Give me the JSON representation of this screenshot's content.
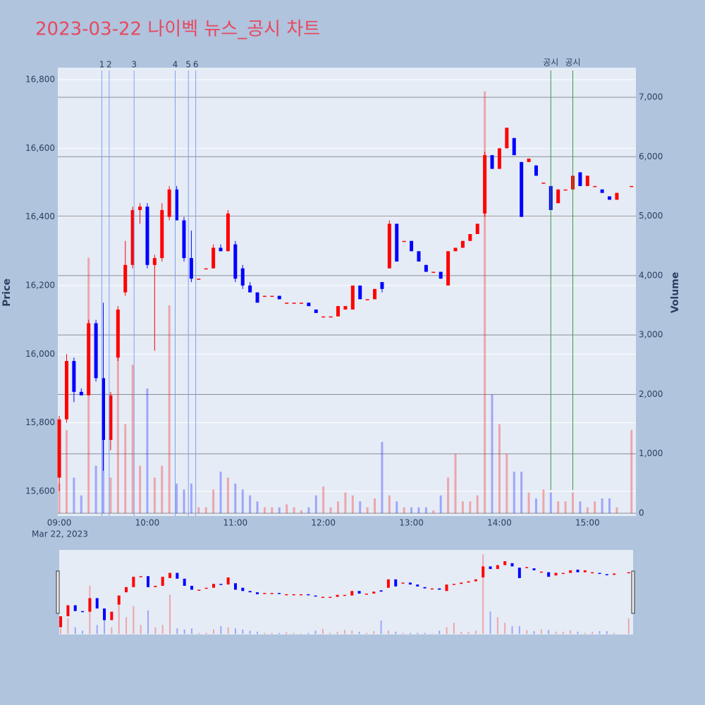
{
  "chart_data": {
    "type": "candlestick",
    "title": "2023-03-22 나이벡 뉴스_공시 차트",
    "x_date_label": "Mar 22, 2023",
    "ylabel": "Price",
    "y2label": "Volume",
    "x": [
      "09:00",
      "09:05",
      "09:10",
      "09:15",
      "09:20",
      "09:25",
      "09:30",
      "09:35",
      "09:40",
      "09:45",
      "09:50",
      "09:55",
      "10:00",
      "10:05",
      "10:10",
      "10:15",
      "10:20",
      "10:25",
      "10:30",
      "10:35",
      "10:40",
      "10:45",
      "10:50",
      "10:55",
      "11:00",
      "11:05",
      "11:10",
      "11:15",
      "11:20",
      "11:25",
      "11:30",
      "11:35",
      "11:40",
      "11:45",
      "11:50",
      "11:55",
      "12:00",
      "12:05",
      "12:10",
      "12:15",
      "12:20",
      "12:25",
      "12:30",
      "12:35",
      "12:40",
      "12:45",
      "12:50",
      "12:55",
      "13:00",
      "13:05",
      "13:10",
      "13:15",
      "13:20",
      "13:25",
      "13:30",
      "13:35",
      "13:40",
      "13:45",
      "13:50",
      "13:55",
      "14:00",
      "14:05",
      "14:10",
      "14:15",
      "14:20",
      "14:25",
      "14:30",
      "14:35",
      "14:40",
      "14:45",
      "14:50",
      "14:55",
      "15:00",
      "15:05",
      "15:10",
      "15:15",
      "15:20",
      "15:30"
    ],
    "open": [
      15640,
      15810,
      15980,
      15890,
      15880,
      16090,
      15930,
      15750,
      15990,
      16180,
      16260,
      16420,
      16430,
      16260,
      16280,
      16400,
      16480,
      16390,
      16280,
      16220,
      16250,
      16250,
      16310,
      16300,
      16320,
      16250,
      16200,
      16180,
      16170,
      16170,
      16170,
      16150,
      16150,
      16150,
      16150,
      16130,
      16110,
      16110,
      16110,
      16130,
      16130,
      16200,
      16160,
      16160,
      16210,
      16250,
      16380,
      16330,
      16330,
      16300,
      16260,
      16240,
      16240,
      16200,
      16300,
      16310,
      16330,
      16350,
      16410,
      16580,
      16540,
      16600,
      16630,
      16560,
      16560,
      16550,
      16500,
      16490,
      16440,
      16480,
      16480,
      16530,
      16490,
      16490,
      16480,
      16460,
      16450,
      16490
    ],
    "high": [
      15820,
      16000,
      15990,
      15900,
      16100,
      16100,
      16150,
      15890,
      16140,
      16330,
      16430,
      16440,
      16440,
      16290,
      16440,
      16490,
      16490,
      16400,
      16360,
      16220,
      16250,
      16320,
      16320,
      16420,
      16330,
      16260,
      16210,
      16180,
      16170,
      16170,
      16170,
      16150,
      16150,
      16150,
      16150,
      16130,
      16110,
      16110,
      16140,
      16140,
      16200,
      16200,
      16160,
      16190,
      16210,
      16390,
      16380,
      16330,
      16330,
      16300,
      16260,
      16240,
      16240,
      16300,
      16310,
      16330,
      16350,
      16380,
      16590,
      16580,
      16600,
      16660,
      16630,
      16560,
      16570,
      16550,
      16500,
      16490,
      16480,
      16480,
      16520,
      16530,
      16520,
      16490,
      16480,
      16460,
      16470,
      16490
    ],
    "low": [
      15600,
      15800,
      15860,
      15880,
      15880,
      15920,
      15660,
      15720,
      15980,
      16170,
      16250,
      16380,
      16250,
      16010,
      16270,
      16390,
      16390,
      16270,
      16210,
      16220,
      16250,
      16250,
      16300,
      16300,
      16210,
      16190,
      16180,
      16150,
      16170,
      16170,
      16160,
      16150,
      16150,
      16150,
      16140,
      16120,
      16110,
      16110,
      16110,
      16130,
      16130,
      16160,
      16160,
      16160,
      16180,
      16250,
      16270,
      16330,
      16300,
      16270,
      16240,
      16240,
      16220,
      16200,
      16300,
      16310,
      16330,
      16350,
      16400,
      16540,
      16540,
      16600,
      16580,
      16400,
      16560,
      16520,
      16500,
      16420,
      16440,
      16480,
      16480,
      16490,
      16490,
      16490,
      16470,
      16450,
      16450,
      16490
    ],
    "close": [
      15810,
      15980,
      15890,
      15880,
      16090,
      15930,
      15750,
      15880,
      16130,
      16260,
      16420,
      16430,
      16260,
      16280,
      16420,
      16480,
      16390,
      16280,
      16220,
      16220,
      16250,
      16310,
      16300,
      16410,
      16220,
      16200,
      16180,
      16150,
      16170,
      16170,
      16160,
      16150,
      16150,
      16150,
      16140,
      16120,
      16110,
      16110,
      16140,
      16140,
      16200,
      16160,
      16160,
      16190,
      16190,
      16380,
      16270,
      16330,
      16300,
      16270,
      16240,
      16240,
      16220,
      16300,
      16310,
      16330,
      16350,
      16380,
      16580,
      16540,
      16600,
      16660,
      16580,
      16400,
      16570,
      16520,
      16500,
      16420,
      16480,
      16480,
      16520,
      16490,
      16520,
      16490,
      16470,
      16450,
      16470,
      16490
    ],
    "volume": [
      500,
      1400,
      600,
      300,
      4300,
      800,
      1500,
      600,
      3200,
      1500,
      2500,
      800,
      2100,
      600,
      800,
      3500,
      500,
      400,
      500,
      100,
      100,
      400,
      700,
      600,
      500,
      400,
      300,
      200,
      100,
      100,
      100,
      150,
      100,
      50,
      100,
      300,
      450,
      100,
      200,
      350,
      300,
      200,
      100,
      250,
      1200,
      300,
      200,
      100,
      100,
      100,
      100,
      50,
      300,
      600,
      1000,
      200,
      200,
      300,
      7100,
      2000,
      1500,
      1000,
      700,
      700,
      350,
      250,
      400,
      350,
      200,
      200,
      350,
      200,
      100,
      200,
      250,
      250,
      100,
      1400
    ],
    "up_color": "#ff0000",
    "down_color": "#0000ff",
    "xlim": [
      "08:59",
      "15:33"
    ],
    "xticks": [
      "09:00",
      "10:00",
      "11:00",
      "12:00",
      "13:00",
      "14:00",
      "15:00"
    ],
    "ylim": [
      15528,
      16835
    ],
    "yticks": [
      {
        "value": 15600,
        "label": "15,600"
      },
      {
        "value": 15800,
        "label": "15,800"
      },
      {
        "value": 16000,
        "label": "16,000"
      },
      {
        "value": 16200,
        "label": "16,200"
      },
      {
        "value": 16400,
        "label": "16,400"
      },
      {
        "value": 16600,
        "label": "16,600"
      },
      {
        "value": 16800,
        "label": "16,800"
      }
    ],
    "y2lim": [
      -47,
      7498
    ],
    "y2ticks": [
      0,
      {
        "value": 1000,
        "label": "1,000"
      },
      {
        "value": 2000,
        "label": "2,000"
      },
      {
        "value": 3000,
        "label": "3,000"
      },
      {
        "value": 4000,
        "label": "4,000"
      },
      {
        "value": 5000,
        "label": "5,000"
      },
      {
        "value": 6000,
        "label": "6,000"
      },
      {
        "value": 7000,
        "label": "7,000"
      }
    ],
    "annotations": [
      {
        "x": "09:29",
        "label": "1",
        "color": "#7f9ff0"
      },
      {
        "x": "09:34",
        "label": "2",
        "color": "#7f9ff0"
      },
      {
        "x": "09:51",
        "label": "3",
        "color": "#7f9ff0"
      },
      {
        "x": "10:19",
        "label": "4",
        "color": "#7f9ff0"
      },
      {
        "x": "10:28",
        "label": "5",
        "color": "#7f9ff0"
      },
      {
        "x": "10:33",
        "label": "6",
        "color": "#7f9ff0"
      },
      {
        "x": "14:35",
        "label": "공시",
        "color": "#3a9a3a"
      },
      {
        "x": "14:50",
        "label": "공시",
        "color": "#3a9a3a"
      }
    ],
    "range_slider": true
  }
}
